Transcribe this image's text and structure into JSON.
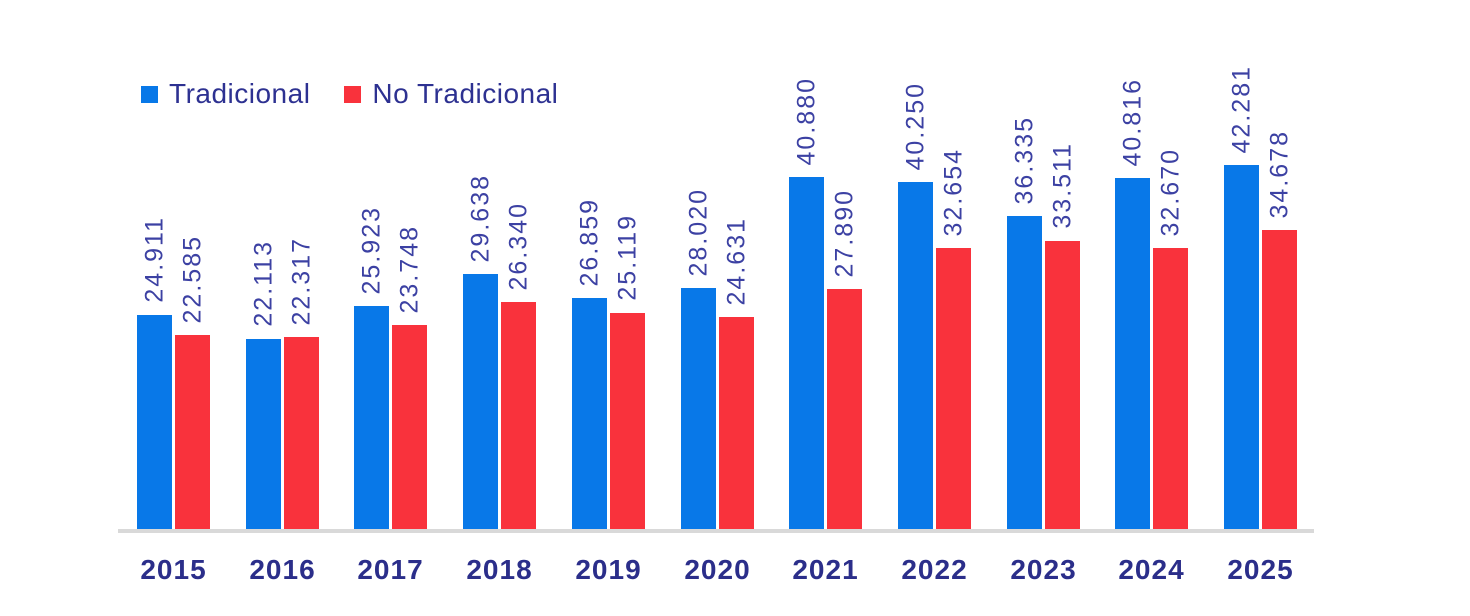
{
  "chart_data": {
    "type": "bar",
    "title": "",
    "xlabel": "",
    "ylabel": "",
    "grid": false,
    "legend_position": "top-left",
    "value_labels": "rotated-90-above-bars",
    "ylim": [
      0,
      45000
    ],
    "categories": [
      "2015",
      "2016",
      "2017",
      "2018",
      "2019",
      "2020",
      "2021",
      "2022",
      "2023",
      "2024",
      "2025"
    ],
    "series": [
      {
        "name": "Tradicional",
        "color": "#0878e8",
        "values": [
          24911,
          22113,
          25923,
          29638,
          26859,
          28020,
          40880,
          40250,
          36335,
          40816,
          42281
        ],
        "labels": [
          "24.911",
          "22.113",
          "25.923",
          "29.638",
          "26.859",
          "28.020",
          "40.880",
          "40.250",
          "36.335",
          "40.816",
          "42.281"
        ]
      },
      {
        "name": "No Tradicional",
        "color": "#f9323c",
        "values": [
          22585,
          22317,
          23748,
          26340,
          25119,
          24631,
          27890,
          32654,
          33511,
          32670,
          34678
        ],
        "labels": [
          "22.585",
          "22.317",
          "23.748",
          "26.340",
          "25.119",
          "24.631",
          "27.890",
          "32.654",
          "33.511",
          "32.670",
          "34.678"
        ]
      }
    ]
  },
  "colors": {
    "bar_blue": "#0878e8",
    "bar_red": "#f9323c",
    "value_label_text": "#3c41a3",
    "legend_text": "#2d3191",
    "year_text": "#2b2e8a",
    "axis_line": "#d9d9d9",
    "background": "#ffffff"
  }
}
